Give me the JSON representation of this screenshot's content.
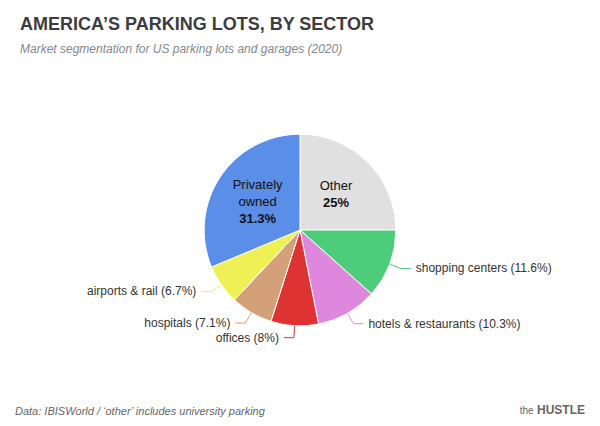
{
  "chart_data": {
    "type": "pie",
    "title": "AMERICA’S PARKING LOTS, BY SECTOR",
    "subtitle": "Market segmentation for US parking lots and garages (2020)",
    "footnote": "Data: IBISWorld / ‘other’ includes university parking",
    "annotations": [
      "the",
      "HUSTLE"
    ],
    "values": [
      25.0,
      11.6,
      10.3,
      8.0,
      7.1,
      6.7,
      31.3
    ],
    "value_labels": [
      "Other\n25%",
      "shopping centers (11.6%)",
      "hotels & restaurants (10.3%)",
      "offices (8%)",
      "hospitals (7.1%)",
      "airports & rail (6.7%)",
      "Privately\nowned\n31.3%"
    ],
    "colors": [
      "#e0e0e0",
      "#4dcc7a",
      "#dd88dd",
      "#dd3333",
      "#d4a07a",
      "#eef055",
      "#5b8ee8"
    ]
  }
}
